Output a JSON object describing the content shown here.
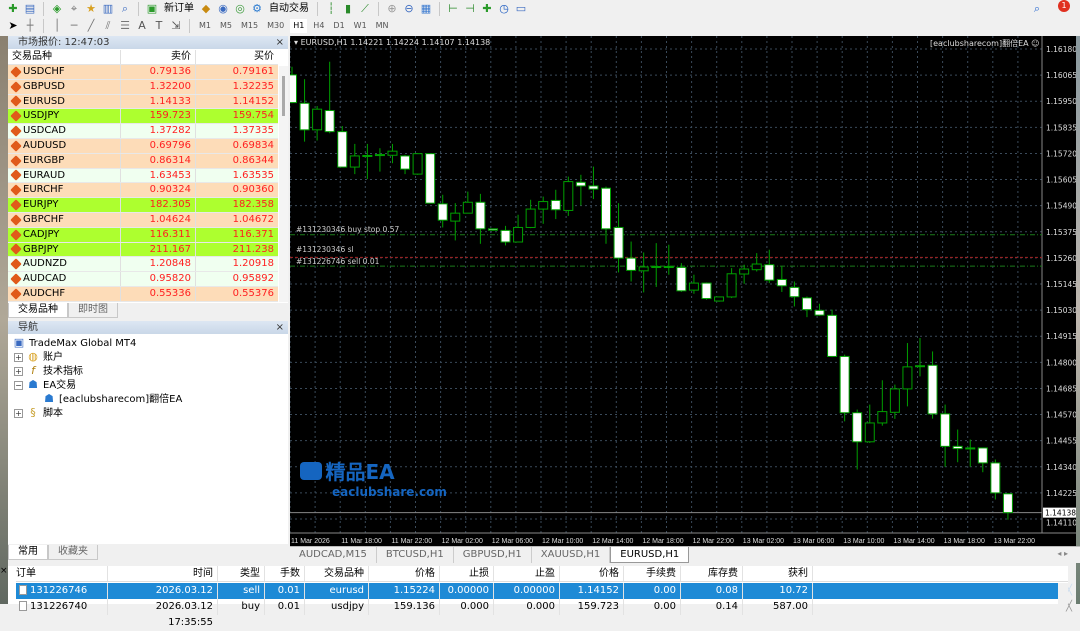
{
  "toolbar": {
    "new_order": "新订单",
    "auto_trading": "自动交易",
    "timeframes": [
      "M1",
      "M5",
      "M15",
      "M30",
      "H1",
      "H4",
      "D1",
      "W1",
      "MN"
    ],
    "active_timeframe": "H1",
    "notification_count": "1"
  },
  "market_watch": {
    "title": "市场报价: 12:47:03",
    "columns": [
      "交易品种",
      "卖价",
      "买价"
    ],
    "rows": [
      {
        "symbol": "USDCHF",
        "bid": "0.79136",
        "ask": "0.79161",
        "bg": "#fddcb8"
      },
      {
        "symbol": "GBPUSD",
        "bid": "1.32200",
        "ask": "1.32235",
        "bg": "#fddcb8"
      },
      {
        "symbol": "EURUSD",
        "bid": "1.14133",
        "ask": "1.14152",
        "bg": "#fddcb8"
      },
      {
        "symbol": "USDJPY",
        "bid": "159.723",
        "ask": "159.754",
        "bg": "#adff2f"
      },
      {
        "symbol": "USDCAD",
        "bid": "1.37282",
        "ask": "1.37335",
        "bg": "#f0fff0"
      },
      {
        "symbol": "AUDUSD",
        "bid": "0.69796",
        "ask": "0.69834",
        "bg": "#fddcb8"
      },
      {
        "symbol": "EURGBP",
        "bid": "0.86314",
        "ask": "0.86344",
        "bg": "#fddcb8"
      },
      {
        "symbol": "EURAUD",
        "bid": "1.63453",
        "ask": "1.63535",
        "bg": "#f0fff0"
      },
      {
        "symbol": "EURCHF",
        "bid": "0.90324",
        "ask": "0.90360",
        "bg": "#fddcb8"
      },
      {
        "symbol": "EURJPY",
        "bid": "182.305",
        "ask": "182.358",
        "bg": "#adff2f"
      },
      {
        "symbol": "GBPCHF",
        "bid": "1.04624",
        "ask": "1.04672",
        "bg": "#fddcb8"
      },
      {
        "symbol": "CADJPY",
        "bid": "116.311",
        "ask": "116.371",
        "bg": "#adff2f"
      },
      {
        "symbol": "GBPJPY",
        "bid": "211.167",
        "ask": "211.238",
        "bg": "#adff2f"
      },
      {
        "symbol": "AUDNZD",
        "bid": "1.20848",
        "ask": "1.20918",
        "bg": "#f0fff0"
      },
      {
        "symbol": "AUDCAD",
        "bid": "0.95820",
        "ask": "0.95892",
        "bg": "#f0fff0"
      },
      {
        "symbol": "AUDCHF",
        "bid": "0.55336",
        "ask": "0.55376",
        "bg": "#fddcb8"
      }
    ],
    "tabs": [
      "交易品种",
      "即时图"
    ]
  },
  "navigator": {
    "title": "导航",
    "root": "TradeMax Global MT4",
    "items": [
      "账户",
      "技术指标",
      "EA交易",
      "[eaclubsharecom]翻倍EA",
      "脚本"
    ],
    "tabs": [
      "常用",
      "收藏夹"
    ]
  },
  "chart": {
    "header": "EURUSD,H1  1.14221 1.14224 1.14107 1.14138",
    "ea_label": "[eaclubsharecom]翻倍EA",
    "order_labels": [
      "#131230346 buy stop 0.57",
      "#131230346 sl",
      "#131226746 sell 0.01"
    ],
    "current_price": "1.14138",
    "colors": {
      "background": "#000000",
      "bull": "#00a000",
      "bear_body": "#ffffff",
      "grid": "#3a4a5a",
      "buy_stop_line": "#1a7a1a",
      "sl_line": "#a02020"
    }
  },
  "chart_data": {
    "type": "candlestick",
    "symbol": "EURUSD",
    "timeframe": "H1",
    "ylim": [
      1.1411,
      1.1618
    ],
    "y_ticks": [
      "1.16180",
      "1.16065",
      "1.15950",
      "1.15835",
      "1.15720",
      "1.15605",
      "1.15490",
      "1.15375",
      "1.15260",
      "1.15145",
      "1.15030",
      "1.14915",
      "1.14800",
      "1.14685",
      "1.14570",
      "1.14455",
      "1.14340",
      "1.14225",
      "1.14110"
    ],
    "x_ticks": [
      "11 Mar 2026",
      "11 Mar 18:00",
      "11 Mar 22:00",
      "12 Mar 02:00",
      "12 Mar 06:00",
      "12 Mar 10:00",
      "12 Mar 14:00",
      "12 Mar 18:00",
      "12 Mar 22:00",
      "13 Mar 02:00",
      "13 Mar 06:00",
      "13 Mar 10:00",
      "13 Mar 14:00",
      "13 Mar 18:00",
      "13 Mar 22:00"
    ],
    "grid": true,
    "levels": {
      "buy_stop": 1.15362,
      "sl": 1.15262,
      "sell": 1.15224,
      "bid": 1.14138
    },
    "ohlc": [
      [
        1.16066,
        1.16102,
        1.15941,
        1.15944
      ],
      [
        1.15941,
        1.16047,
        1.15772,
        1.15824
      ],
      [
        1.15824,
        1.15929,
        1.15777,
        1.15915
      ],
      [
        1.15909,
        1.16124,
        1.15809,
        1.15816
      ],
      [
        1.15816,
        1.15841,
        1.1566,
        1.1566
      ],
      [
        1.1566,
        1.15762,
        1.15629,
        1.15709
      ],
      [
        1.15709,
        1.15762,
        1.15607,
        1.15711
      ],
      [
        1.15713,
        1.15743,
        1.1564,
        1.15715
      ],
      [
        1.15712,
        1.15762,
        1.15677,
        1.1573
      ],
      [
        1.15709,
        1.15714,
        1.15629,
        1.15651
      ],
      [
        1.15629,
        1.15721,
        1.15626,
        1.15719
      ],
      [
        1.15719,
        1.15719,
        1.15501,
        1.15501
      ],
      [
        1.15498,
        1.15538,
        1.15394,
        1.15426
      ],
      [
        1.15422,
        1.15501,
        1.15337,
        1.15457
      ],
      [
        1.15457,
        1.15552,
        1.15457,
        1.15505
      ],
      [
        1.15505,
        1.15542,
        1.15322,
        1.15388
      ],
      [
        1.15388,
        1.15388,
        1.15379,
        1.15382
      ],
      [
        1.15381,
        1.15401,
        1.15315,
        1.1533
      ],
      [
        1.1533,
        1.1545,
        1.15328,
        1.15394
      ],
      [
        1.15394,
        1.15516,
        1.15391,
        1.15475
      ],
      [
        1.15475,
        1.1553,
        1.1541,
        1.15508
      ],
      [
        1.15513,
        1.1556,
        1.15431,
        1.15472
      ],
      [
        1.15469,
        1.15618,
        1.15445,
        1.15596
      ],
      [
        1.15593,
        1.15626,
        1.15491,
        1.15577
      ],
      [
        1.15577,
        1.15662,
        1.15519,
        1.15563
      ],
      [
        1.15567,
        1.15574,
        1.15322,
        1.15388
      ],
      [
        1.15394,
        1.15501,
        1.15196,
        1.15259
      ],
      [
        1.15259,
        1.15332,
        1.15156,
        1.15205
      ],
      [
        1.15203,
        1.15284,
        1.15108,
        1.1522
      ],
      [
        1.15222,
        1.15325,
        1.15132,
        1.1522
      ],
      [
        1.1522,
        1.15318,
        1.15186,
        1.15222
      ],
      [
        1.15218,
        1.15237,
        1.1511,
        1.15115
      ],
      [
        1.15118,
        1.15186,
        1.15102,
        1.15149
      ],
      [
        1.15149,
        1.15152,
        1.15076,
        1.15081
      ],
      [
        1.1507,
        1.15088,
        1.15067,
        1.15088
      ],
      [
        1.15088,
        1.15215,
        1.15083,
        1.1519
      ],
      [
        1.15189,
        1.1523,
        1.15146,
        1.15211
      ],
      [
        1.15208,
        1.15281,
        1.152,
        1.15233
      ],
      [
        1.1523,
        1.15296,
        1.15149,
        1.15162
      ],
      [
        1.15165,
        1.15222,
        1.1511,
        1.15137
      ],
      [
        1.1513,
        1.15156,
        1.15046,
        1.15089
      ],
      [
        1.15084,
        1.1509,
        1.14999,
        1.15032
      ],
      [
        1.15029,
        1.15058,
        1.15005,
        1.15008
      ],
      [
        1.15007,
        1.15032,
        1.14823,
        1.14826
      ],
      [
        1.14826,
        1.14834,
        1.1454,
        1.14578
      ],
      [
        1.14578,
        1.14592,
        1.14328,
        1.1445
      ],
      [
        1.1445,
        1.14614,
        1.14445,
        1.14533
      ],
      [
        1.14533,
        1.14721,
        1.14521,
        1.14583
      ],
      [
        1.1458,
        1.14702,
        1.14551,
        1.14683
      ],
      [
        1.14683,
        1.14885,
        1.14606,
        1.1478
      ],
      [
        1.14783,
        1.14907,
        1.14738,
        1.14785
      ],
      [
        1.14787,
        1.14848,
        1.14552,
        1.14573
      ],
      [
        1.14573,
        1.14614,
        1.1434,
        1.1443
      ],
      [
        1.1443,
        1.14504,
        1.1436,
        1.1442
      ],
      [
        1.14423,
        1.1446,
        1.1434,
        1.14421
      ],
      [
        1.14423,
        1.14423,
        1.14316,
        1.14357
      ],
      [
        1.14357,
        1.14372,
        1.14196,
        1.14225
      ],
      [
        1.14221,
        1.14224,
        1.14107,
        1.14138
      ]
    ]
  },
  "chart_tabs": [
    "AUDCAD,M15",
    "BTCUSD,H1",
    "GBPUSD,H1",
    "XAUUSD,H1",
    "EURUSD,H1"
  ],
  "active_chart_tab": "EURUSD,H1",
  "terminal": {
    "columns": [
      "订单",
      "时间",
      "类型",
      "手数",
      "交易品种",
      "价格",
      "止损",
      "止盈",
      "价格",
      "手续费",
      "库存费",
      "获利"
    ],
    "rows": [
      [
        "131226746",
        "2026.03.12 17:35:55",
        "sell",
        "0.01",
        "eurusd",
        "1.15224",
        "0.00000",
        "0.00000",
        "1.14152",
        "0.00",
        "0.08",
        "10.72"
      ],
      [
        "131226740",
        "2026.03.12 17:35:55",
        "buy",
        "0.01",
        "usdjpy",
        "159.136",
        "0.000",
        "0.000",
        "159.723",
        "0.00",
        "0.14",
        "587.00"
      ]
    ]
  },
  "watermark": {
    "title": "精品EA",
    "url": "eaclubshare.com"
  }
}
